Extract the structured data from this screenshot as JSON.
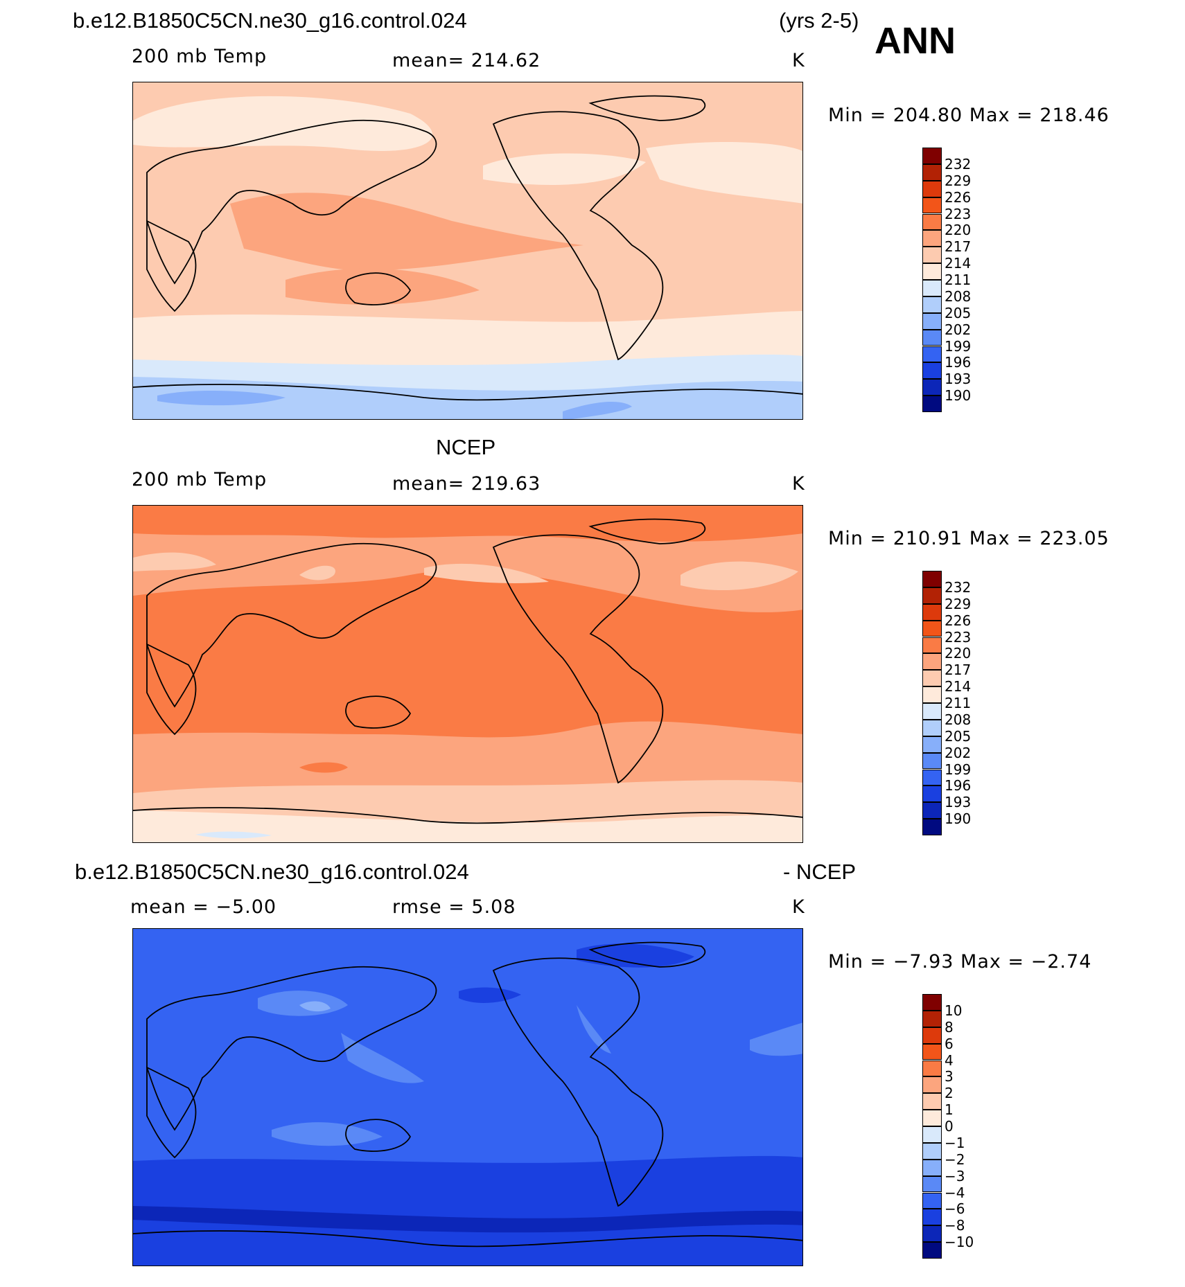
{
  "header": {
    "case_name": "b.e12.B1850C5CN.ne30_g16.control.024",
    "years": "(yrs 2-5)",
    "season": "ANN"
  },
  "panels": [
    {
      "id": "model",
      "title": "",
      "variable": "200 mb Temp",
      "stat": "mean=  214.62",
      "units": "K",
      "minmax": "Min  =  204.80  Max  =  218.46",
      "field": {
        "min": 204.8,
        "max": 218.46,
        "mean": 214.62
      }
    },
    {
      "id": "obs",
      "title": "NCEP",
      "variable": "200 mb Temp",
      "stat": "mean=  219.63",
      "units": "K",
      "minmax": "Min  =  210.91  Max  =  223.05",
      "field": {
        "min": 210.91,
        "max": 223.05,
        "mean": 219.63
      }
    },
    {
      "id": "diff",
      "title_left": "b.e12.B1850C5CN.ne30_g16.control.024",
      "title_right": "- NCEP",
      "stat_left": "mean  =    −5.00",
      "stat_mid": "rmse  =     5.08",
      "units": "K",
      "minmax": "Min  =    −7.93  Max  =    −2.74",
      "field": {
        "min": -7.93,
        "max": -2.74,
        "mean": -5.0,
        "rmse": 5.08
      }
    }
  ],
  "colorbars": {
    "abs_labels": [
      "232",
      "229",
      "226",
      "223",
      "220",
      "217",
      "214",
      "211",
      "208",
      "205",
      "202",
      "199",
      "196",
      "193",
      "190"
    ],
    "diff_labels": [
      "10",
      "8",
      "6",
      "4",
      "3",
      "2",
      "1",
      "0",
      "−1",
      "−2",
      "−3",
      "−4",
      "−6",
      "−8",
      "−10"
    ],
    "colors": [
      "#7f0000",
      "#b22205",
      "#dd3a0c",
      "#f25519",
      "#fa7b45",
      "#fca57e",
      "#fdcbb0",
      "#feeadb",
      "#d9e9fb",
      "#b0cefb",
      "#87affa",
      "#5a89f6",
      "#3463f2",
      "#1a40e0",
      "#0c26b8",
      "#000a80"
    ]
  }
}
